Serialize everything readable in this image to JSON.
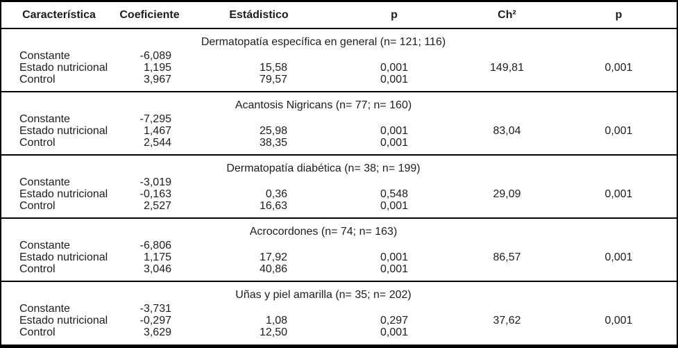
{
  "colors": {
    "border": "#000000",
    "text": "#1c1c1c",
    "background": "#ffffff"
  },
  "table": {
    "headers": [
      "Característica",
      "Coeficiente",
      "Estádistico",
      "p",
      "Ch²",
      "p"
    ],
    "sections": [
      {
        "title": "Dermatopatía específica en general (n= 121; 116)",
        "rows": [
          {
            "label": "Constante",
            "coeficiente": "-6,089",
            "estadistico": "",
            "p": "",
            "chi2": "",
            "p2": ""
          },
          {
            "label": "Estado nutricional",
            "coeficiente": "1,195",
            "estadistico": "15,58",
            "p": "0,001",
            "chi2": "149,81",
            "p2": "0,001"
          },
          {
            "label": "Control",
            "coeficiente": "3,967",
            "estadistico": "79,57",
            "p": "0,001",
            "chi2": "",
            "p2": ""
          }
        ]
      },
      {
        "title": "Acantosis Nigricans (n= 77; n= 160)",
        "rows": [
          {
            "label": "Constante",
            "coeficiente": "-7,295",
            "estadistico": "",
            "p": "",
            "chi2": "",
            "p2": ""
          },
          {
            "label": "Estado nutricional",
            "coeficiente": "1,467",
            "estadistico": "25,98",
            "p": "0,001",
            "chi2": "83,04",
            "p2": "0,001"
          },
          {
            "label": "Control",
            "coeficiente": "2,544",
            "estadistico": "38,35",
            "p": "0,001",
            "chi2": "",
            "p2": ""
          }
        ]
      },
      {
        "title": "Dermatopatía diabética (n= 38; n= 199)",
        "rows": [
          {
            "label": "Constante",
            "coeficiente": "-3,019",
            "estadistico": "",
            "p": "",
            "chi2": "",
            "p2": ""
          },
          {
            "label": "Estado nutricional",
            "coeficiente": "-0,163",
            "estadistico": "0,36",
            "p": "0,548",
            "chi2": "29,09",
            "p2": "0,001"
          },
          {
            "label": "Control",
            "coeficiente": "2,527",
            "estadistico": "16,63",
            "p": "0,001",
            "chi2": "",
            "p2": ""
          }
        ]
      },
      {
        "title": "Acrocordones (n= 74; n= 163)",
        "rows": [
          {
            "label": "Constante",
            "coeficiente": "-6,806",
            "estadistico": "",
            "p": "",
            "chi2": "",
            "p2": ""
          },
          {
            "label": "Estado nutricional",
            "coeficiente": "1,175",
            "estadistico": "17,92",
            "p": "0,001",
            "chi2": "86,57",
            "p2": "0,001"
          },
          {
            "label": "Control",
            "coeficiente": "3,046",
            "estadistico": "40,86",
            "p": "0,001",
            "chi2": "",
            "p2": ""
          }
        ]
      },
      {
        "title": "Uñas y piel amarilla (n= 35; n= 202)",
        "rows": [
          {
            "label": "Constante",
            "coeficiente": "-3,731",
            "estadistico": "",
            "p": "",
            "chi2": "",
            "p2": ""
          },
          {
            "label": "Estado nutricional",
            "coeficiente": "-0,297",
            "estadistico": "1,08",
            "p": "0,297",
            "chi2": "37,62",
            "p2": "0,001"
          },
          {
            "label": "Control",
            "coeficiente": "3,629",
            "estadistico": "12,50",
            "p": "0,001",
            "chi2": "",
            "p2": ""
          }
        ]
      }
    ]
  }
}
